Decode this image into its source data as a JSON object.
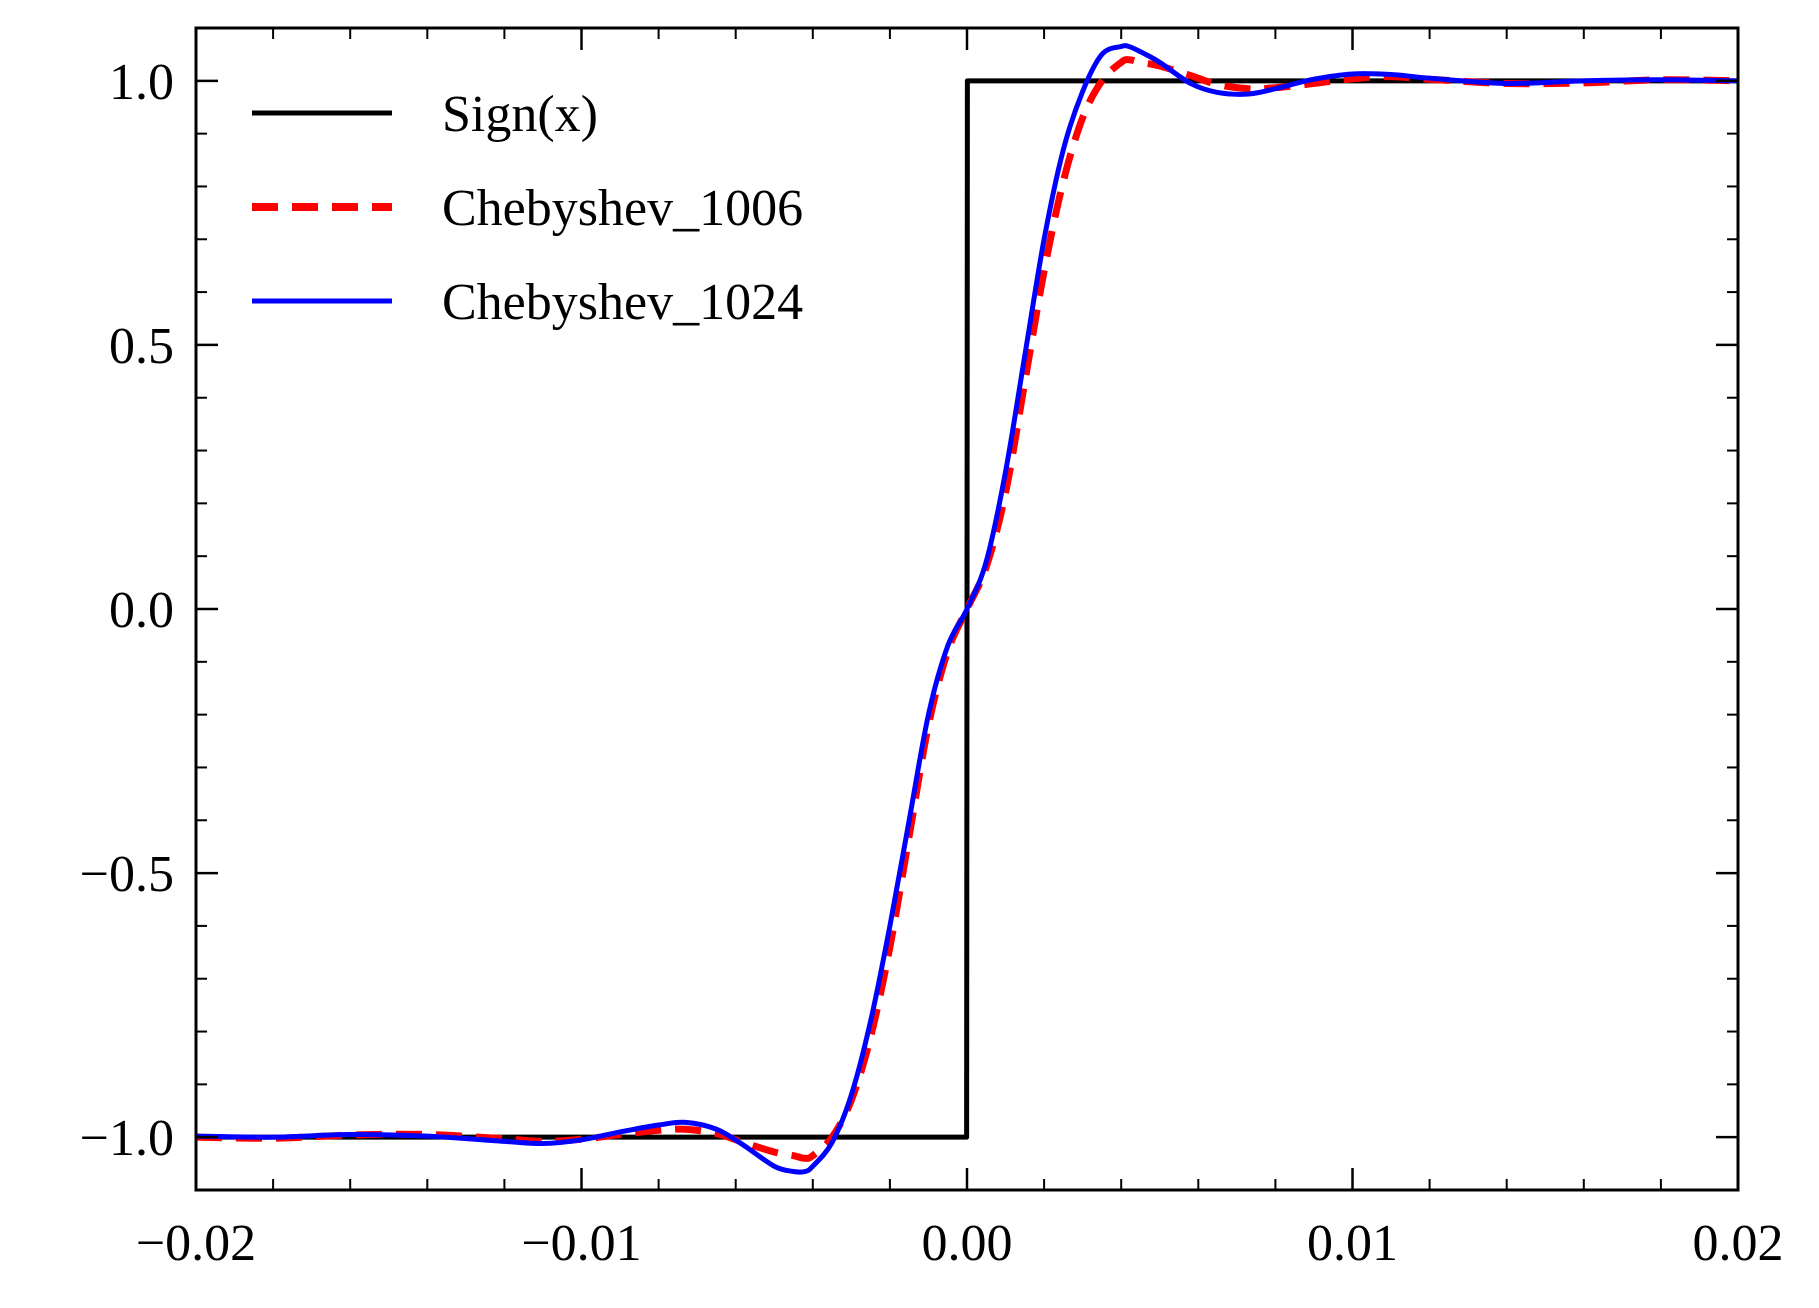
{
  "chart_data": {
    "type": "line",
    "title": "",
    "xlabel": "",
    "ylabel": "",
    "xlim": [
      -0.02,
      0.02
    ],
    "ylim": [
      -1.1,
      1.1
    ],
    "grid": false,
    "legend_position": "top-left",
    "x_ticks": [
      -0.02,
      -0.01,
      0.0,
      0.01,
      0.02
    ],
    "x_tick_labels": [
      "−0.02",
      "−0.01",
      "0.00",
      "0.01",
      "0.02"
    ],
    "y_ticks": [
      -1.0,
      -0.5,
      0.0,
      0.5,
      1.0
    ],
    "y_tick_labels": [
      "−1.0",
      "−0.5",
      "0.0",
      "0.5",
      "1.0"
    ],
    "series": [
      {
        "name": "Sign(x)",
        "color": "#000000",
        "style": "solid",
        "x": [
          -0.02,
          -1e-05,
          1e-05,
          0.02
        ],
        "y": [
          -1.0,
          -1.0,
          1.0,
          1.0
        ]
      },
      {
        "name": "Chebyshev_1006",
        "color": "#ff0000",
        "style": "dashed",
        "x": [
          -0.02,
          -0.018,
          -0.016,
          -0.014,
          -0.012,
          -0.011,
          -0.01,
          -0.009,
          -0.008,
          -0.0073,
          -0.0065,
          -0.0058,
          -0.005,
          -0.0045,
          -0.0042,
          -0.004,
          -0.0035,
          -0.003,
          -0.0025,
          -0.002,
          -0.0015,
          -0.001,
          -0.0005,
          0.0,
          0.0005,
          0.001,
          0.0015,
          0.002,
          0.0025,
          0.003,
          0.0035,
          0.004,
          0.0042,
          0.0045,
          0.005,
          0.0058,
          0.0065,
          0.0073,
          0.008,
          0.009,
          0.01,
          0.011,
          0.012,
          0.014,
          0.016,
          0.018,
          0.02
        ],
        "y": [
          -1.0,
          -1.002,
          -0.996,
          -0.995,
          -1.003,
          -1.008,
          -1.004,
          -0.995,
          -0.987,
          -0.985,
          -0.993,
          -1.01,
          -1.028,
          -1.035,
          -1.04,
          -1.035,
          -1.0,
          -0.93,
          -0.81,
          -0.64,
          -0.43,
          -0.22,
          -0.08,
          0.0,
          0.08,
          0.22,
          0.43,
          0.64,
          0.81,
          0.93,
          1.0,
          1.035,
          1.04,
          1.035,
          1.028,
          1.01,
          0.993,
          0.985,
          0.987,
          0.995,
          1.004,
          1.008,
          1.003,
          0.995,
          0.996,
          1.002,
          1.0
        ]
      },
      {
        "name": "Chebyshev_1024",
        "color": "#0000ff",
        "style": "solid",
        "x": [
          -0.02,
          -0.018,
          -0.016,
          -0.014,
          -0.012,
          -0.011,
          -0.01,
          -0.009,
          -0.008,
          -0.0073,
          -0.0065,
          -0.0058,
          -0.005,
          -0.0045,
          -0.0042,
          -0.004,
          -0.0035,
          -0.003,
          -0.0025,
          -0.002,
          -0.0015,
          -0.001,
          -0.0005,
          0.0,
          0.0005,
          0.001,
          0.0015,
          0.002,
          0.0025,
          0.003,
          0.0035,
          0.004,
          0.0042,
          0.0045,
          0.005,
          0.0058,
          0.0065,
          0.0073,
          0.008,
          0.009,
          0.01,
          0.011,
          0.012,
          0.014,
          0.016,
          0.018,
          0.02
        ],
        "y": [
          -0.998,
          -1.0,
          -0.995,
          -0.998,
          -1.008,
          -1.012,
          -1.005,
          -0.99,
          -0.977,
          -0.972,
          -0.985,
          -1.015,
          -1.055,
          -1.065,
          -1.065,
          -1.055,
          -1.01,
          -0.92,
          -0.78,
          -0.6,
          -0.4,
          -0.2,
          -0.07,
          0.0,
          0.09,
          0.26,
          0.48,
          0.7,
          0.87,
          0.98,
          1.05,
          1.065,
          1.065,
          1.055,
          1.035,
          0.995,
          0.978,
          0.975,
          0.985,
          1.003,
          1.013,
          1.012,
          1.005,
          0.995,
          1.0,
          1.002,
          1.0
        ]
      }
    ]
  }
}
